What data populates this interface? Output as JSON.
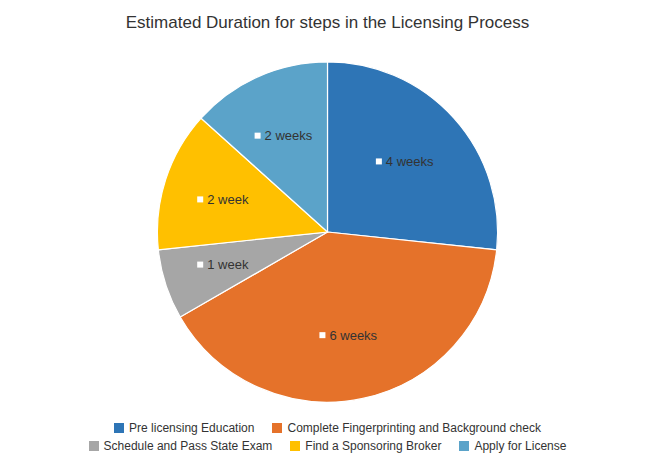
{
  "chart_data": {
    "type": "pie",
    "title": "Estimated Duration for steps in the Licensing Process",
    "categories": [
      "Pre licensing Education",
      "Complete Fingerprinting and Background check",
      "Schedule and Pass State Exam",
      "Find a Sponsoring Broker",
      "Apply for License"
    ],
    "values": [
      4,
      6,
      1,
      2,
      2
    ],
    "value_labels": [
      "4 weeks",
      "6 weeks",
      "1 week",
      "2 week",
      "2 weeks"
    ],
    "colors": [
      "#2E75B6",
      "#E5722A",
      "#A6A6A6",
      "#FFC000",
      "#5BA3C9"
    ],
    "data_labels": true,
    "legend": "bottom"
  }
}
